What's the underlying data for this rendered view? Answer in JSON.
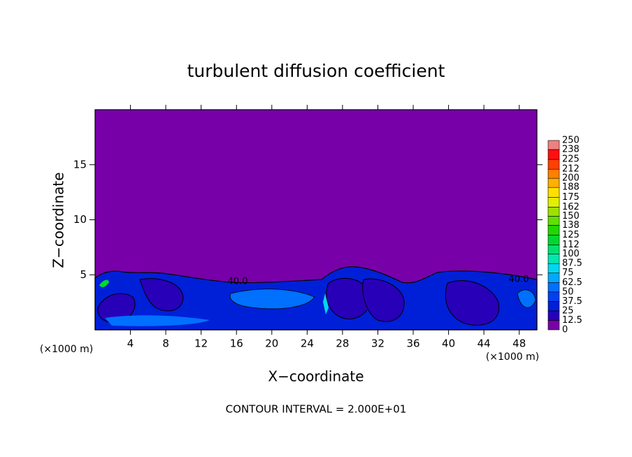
{
  "chart_data": {
    "type": "contour",
    "title": "turbulent diffusion coefficient",
    "x_label": "X−coordinate",
    "y_label": "Z−coordinate",
    "x_unit_label": "(×1000 m)",
    "y_unit_label": "(×1000 m)",
    "footer": "CONTOUR INTERVAL = 2.000E+01",
    "contour_labels": [
      "40.0",
      "40.0"
    ],
    "xlim": [
      0,
      50
    ],
    "xticks": [
      4,
      8,
      12,
      16,
      20,
      24,
      28,
      32,
      36,
      40,
      44,
      48
    ],
    "ylim": [
      0,
      20
    ],
    "yticks": [
      5,
      10,
      15
    ],
    "colorbar": {
      "levels": [
        0,
        12.5,
        25,
        37.5,
        50,
        62.5,
        75,
        87.5,
        100,
        112,
        125,
        138,
        150,
        162,
        175,
        188,
        200,
        212,
        225,
        238,
        250
      ],
      "colors": [
        "#7800a8",
        "#2800b8",
        "#0020d8",
        "#0040f0",
        "#0070ff",
        "#00a8ff",
        "#00d8f0",
        "#00e8b0",
        "#00e070",
        "#00d830",
        "#20d800",
        "#60e000",
        "#a0e000",
        "#e0f000",
        "#ffe000",
        "#ffb000",
        "#ff8000",
        "#ff4000",
        "#ff1010",
        "#f08080"
      ]
    }
  }
}
